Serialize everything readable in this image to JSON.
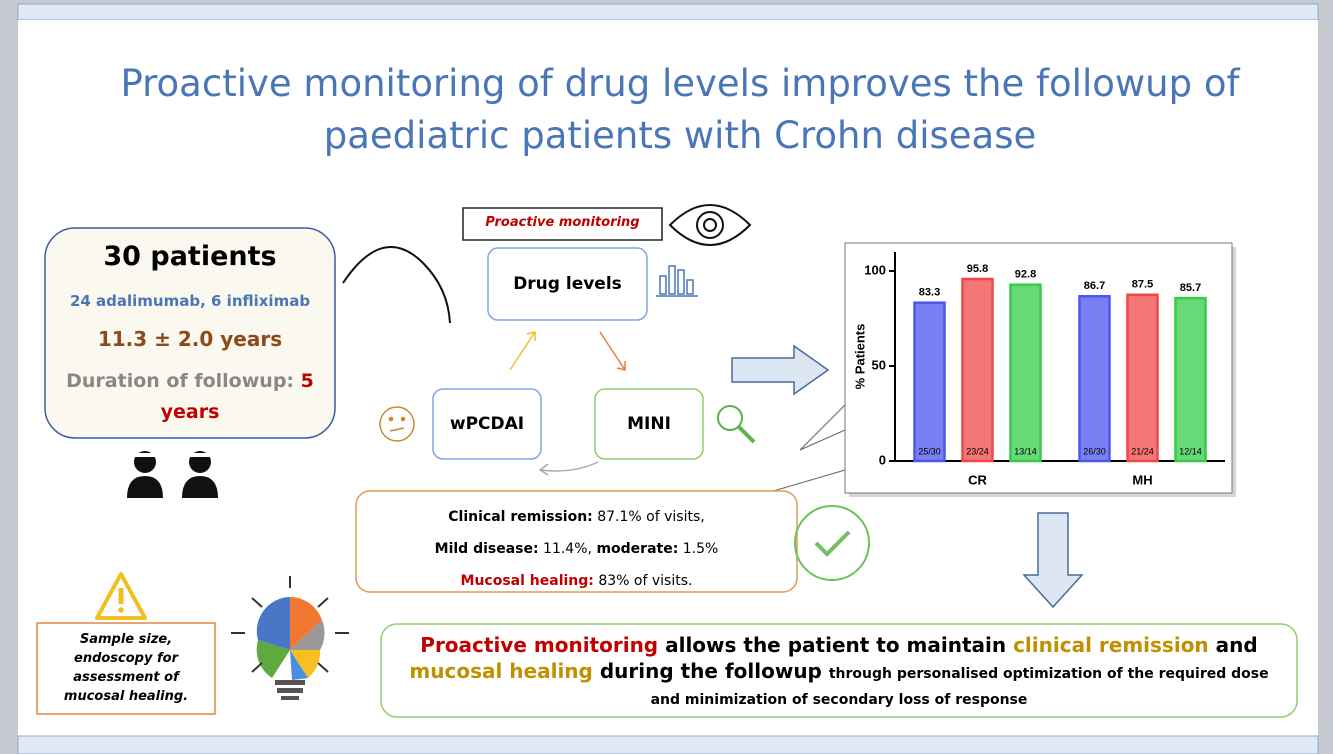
{
  "title": [
    "Proactive monitoring of drug levels improves the followup of",
    "paediatric patients with Crohn disease"
  ],
  "patients": {
    "count": "30 patients",
    "drugs": "24 adalimumab, 6 infliximab",
    "age": "11.3 ± 2.0 years",
    "duration_label": "Duration of followup:",
    "duration_value": "5 years"
  },
  "cycle": {
    "header": "Proactive monitoring",
    "nodes": [
      "Drug levels",
      "MINI",
      "wPCDAI"
    ]
  },
  "results": [
    [
      {
        "text": "Clinical remission:",
        "style": "bold"
      },
      {
        "text": "87.1% of visits,",
        "style": "normal"
      }
    ],
    [
      {
        "text": "Mild disease:",
        "style": "bold"
      },
      {
        "text": "11.4%,",
        "style": "normal"
      },
      {
        "text": "moderate:",
        "style": "bold"
      },
      {
        "text": "1.5%",
        "style": "normal"
      }
    ],
    [
      {
        "text": "Mucosal healing:",
        "style": "red"
      },
      {
        "text": "83% of visits.",
        "style": "normal"
      }
    ]
  ],
  "limitation": "Sample size, endoscopy for assessment of mucosal healing.",
  "conclusion": [
    {
      "text": "Proactive monitoring",
      "style": "red"
    },
    {
      "text": "allows the patient to maintain",
      "style": "black"
    },
    {
      "text": "clinical remission",
      "style": "gold"
    },
    {
      "text": "and",
      "style": "black"
    },
    {
      "text": "mucosal healing",
      "style": "gold"
    },
    {
      "text": "during the followup",
      "style": "black"
    },
    {
      "text": "through personalised optimization of the required dose  and minimization of secondary loss of response",
      "style": "small"
    }
  ],
  "chart_data": {
    "type": "bar",
    "ylabel": "% Patients",
    "categories": [
      "CR",
      "MH"
    ],
    "series": [
      {
        "color": "#4b55f0",
        "values": [
          83.3,
          86.7
        ],
        "bar_labels": [
          "25/30",
          "26/30"
        ]
      },
      {
        "color": "#f04848",
        "values": [
          95.8,
          87.5
        ],
        "bar_labels": [
          "23/24",
          "21/24"
        ]
      },
      {
        "color": "#34cc4a",
        "values": [
          92.8,
          85.7
        ],
        "bar_labels": [
          "13/14",
          "12/14"
        ]
      }
    ],
    "ylim": [
      0,
      110
    ],
    "yticks": [
      0,
      50,
      100
    ],
    "grid": false
  }
}
